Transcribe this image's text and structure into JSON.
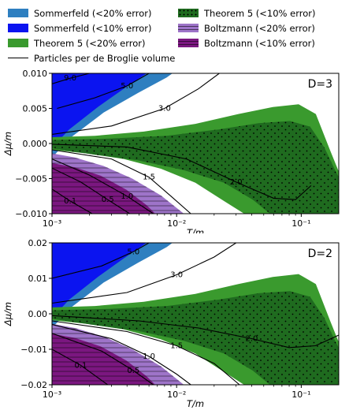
{
  "legend": [
    {
      "label": "Sommerfeld (<20% error)",
      "color": "#2e7fc0",
      "style": "fill"
    },
    {
      "label": "Sommerfeld (<10% error)",
      "color": "#0b14f0",
      "style": "fill"
    },
    {
      "label": "Theorem 5 (<20% error)",
      "color": "#3a9a2e",
      "style": "fill"
    },
    {
      "label": "Particles per de Broglie volume",
      "color": "#000000",
      "style": "line"
    },
    {
      "label": "Theorem 5 (<10% error)",
      "color": "#1f6b1f",
      "style": "dotted"
    },
    {
      "label": "Boltzmann (<20% error)",
      "color": "#9e74c9",
      "style": "hatched"
    },
    {
      "label": "Boltzmann (<10% error)",
      "color": "#7b1780",
      "style": "hatched"
    }
  ],
  "chart_data": [
    {
      "type": "area",
      "panel_label": "D=3",
      "xlabel": "T/m",
      "ylabel": "Δμ/m",
      "xscale": "log",
      "xlim": [
        0.001,
        0.2
      ],
      "ylim": [
        -0.01,
        0.01
      ],
      "x_tick_labels": [
        "10⁻³",
        "10⁻²",
        "10⁻¹"
      ],
      "x_tick_values": [
        0.001,
        0.01,
        0.1
      ],
      "y_tick_labels": [
        "−0.010",
        "−0.005",
        "0.000",
        "0.005",
        "0.010"
      ],
      "y_tick_values": [
        -0.01,
        -0.005,
        0.0,
        0.005,
        0.01
      ],
      "contours": [
        {
          "label": "5.0",
          "x": [
            0.0011,
            0.0022,
            0.004,
            0.006
          ],
          "y": [
            0.005,
            0.0065,
            0.0082,
            0.01
          ]
        },
        {
          "label": "9.0",
          "x": [
            0.001,
            0.0014,
            0.002
          ],
          "y": [
            0.0085,
            0.0093,
            0.01
          ]
        },
        {
          "label": "3.0",
          "x": [
            0.001,
            0.003,
            0.008,
            0.015,
            0.022
          ],
          "y": [
            0.0013,
            0.0025,
            0.005,
            0.0078,
            0.01
          ]
        },
        {
          "label": "2.0",
          "x": [
            0.001,
            0.004,
            0.012,
            0.03,
            0.06,
            0.09,
            0.12
          ],
          "y": [
            -0.0001,
            -0.0005,
            -0.0022,
            -0.0055,
            -0.0078,
            -0.008,
            -0.006
          ]
        },
        {
          "label": "1.5",
          "x": [
            0.001,
            0.003,
            0.006,
            0.009,
            0.013
          ],
          "y": [
            -0.0009,
            -0.0022,
            -0.0048,
            -0.0075,
            -0.01
          ]
        },
        {
          "label": "1.0",
          "x": [
            0.001,
            0.002,
            0.004,
            0.0065
          ],
          "y": [
            -0.0022,
            -0.0045,
            -0.0075,
            -0.01
          ]
        },
        {
          "label": "0.5",
          "x": [
            0.001,
            0.0017,
            0.0028,
            0.0042
          ],
          "y": [
            -0.0035,
            -0.0055,
            -0.008,
            -0.01
          ]
        },
        {
          "label": "0.1",
          "x": [
            0.001,
            0.0014,
            0.0021
          ],
          "y": [
            -0.0065,
            -0.0082,
            -0.01
          ]
        }
      ]
    },
    {
      "type": "area",
      "panel_label": "D=2",
      "xlabel": "T/m",
      "ylabel": "Δμ/m",
      "xscale": "log",
      "xlim": [
        0.001,
        0.2
      ],
      "ylim": [
        -0.02,
        0.02
      ],
      "x_tick_labels": [
        "10⁻³",
        "10⁻²",
        "10⁻¹"
      ],
      "x_tick_values": [
        0.001,
        0.01,
        0.1
      ],
      "y_tick_labels": [
        "−0.02",
        "−0.01",
        "0.00",
        "0.01",
        "0.02"
      ],
      "y_tick_values": [
        -0.02,
        -0.01,
        0.0,
        0.01,
        0.02
      ],
      "contours": [
        {
          "label": "5.0",
          "x": [
            0.001,
            0.0025,
            0.0045,
            0.006
          ],
          "y": [
            0.01,
            0.0135,
            0.0175,
            0.02
          ]
        },
        {
          "label": "3.0",
          "x": [
            0.001,
            0.004,
            0.01,
            0.02,
            0.03
          ],
          "y": [
            0.003,
            0.006,
            0.011,
            0.016,
            0.02
          ]
        },
        {
          "label": "2.0",
          "x": [
            0.001,
            0.005,
            0.015,
            0.04,
            0.08,
            0.13,
            0.2
          ],
          "y": [
            -0.0005,
            -0.002,
            -0.004,
            -0.007,
            -0.0095,
            -0.009,
            -0.006
          ]
        },
        {
          "label": "1.5",
          "x": [
            0.001,
            0.004,
            0.01,
            0.02,
            0.032
          ],
          "y": [
            -0.002,
            -0.005,
            -0.009,
            -0.014,
            -0.02
          ]
        },
        {
          "label": "1.0",
          "x": [
            0.001,
            0.003,
            0.006,
            0.01,
            0.013
          ],
          "y": [
            -0.003,
            -0.007,
            -0.012,
            -0.017,
            -0.02
          ]
        },
        {
          "label": "0.5",
          "x": [
            0.001,
            0.0025,
            0.0045,
            0.0065
          ],
          "y": [
            -0.0055,
            -0.0105,
            -0.016,
            -0.02
          ]
        },
        {
          "label": "0.1",
          "x": [
            0.001,
            0.0017,
            0.0028
          ],
          "y": [
            -0.01,
            -0.0145,
            -0.02
          ]
        }
      ]
    }
  ]
}
